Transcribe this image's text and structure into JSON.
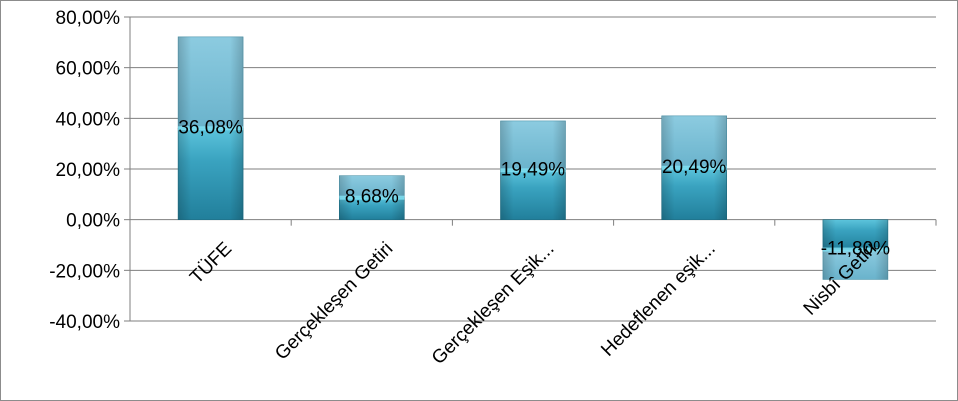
{
  "chart_data": {
    "type": "bar",
    "categories": [
      "TÜFE",
      "Gerçekleşen Getiri",
      "Gerçekleşen Eşik...",
      "Hedeflenen eşik...",
      "Nisbî Getiri"
    ],
    "values": [
      36.08,
      8.68,
      19.49,
      20.49,
      -11.8
    ],
    "data_labels": [
      "36,08%",
      "8,68%",
      "19,49%",
      "20,49%",
      "-11,80%"
    ],
    "ylim": [
      -40,
      80
    ],
    "yticks": [
      80,
      60,
      40,
      20,
      0,
      -20,
      -40
    ],
    "ytick_labels": [
      "80,00%",
      "60,00%",
      "40,00%",
      "20,00%",
      "0,00%",
      "-20,00%",
      "-40,00%"
    ],
    "grid": true,
    "legend": "none",
    "colors": {
      "bar_dark": "#2b8fab",
      "bar_mid": "#4bb7d2",
      "bar_light": "#a6d9e8",
      "bar_top": "#8cc6d8",
      "gridline": "#7f7f7f"
    }
  }
}
